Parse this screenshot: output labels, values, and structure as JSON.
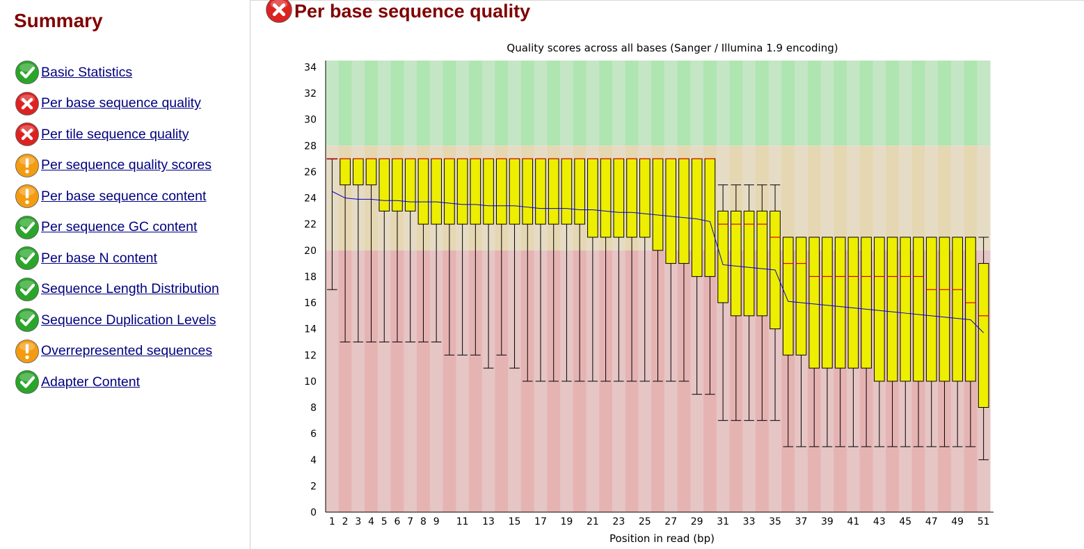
{
  "sidebar": {
    "title": "Summary",
    "modules": [
      {
        "label": "Basic Statistics",
        "status": "pass",
        "icon": "pass-icon"
      },
      {
        "label": "Per base sequence quality",
        "status": "fail",
        "icon": "fail-icon"
      },
      {
        "label": "Per tile sequence quality",
        "status": "fail",
        "icon": "fail-icon"
      },
      {
        "label": "Per sequence quality scores",
        "status": "warn",
        "icon": "warn-icon"
      },
      {
        "label": "Per base sequence content",
        "status": "warn",
        "icon": "warn-icon"
      },
      {
        "label": "Per sequence GC content",
        "status": "pass",
        "icon": "pass-icon"
      },
      {
        "label": "Per base N content",
        "status": "pass",
        "icon": "pass-icon"
      },
      {
        "label": "Sequence Length Distribution",
        "status": "pass",
        "icon": "pass-icon"
      },
      {
        "label": "Sequence Duplication Levels",
        "status": "pass",
        "icon": "pass-icon"
      },
      {
        "label": "Overrepresented sequences",
        "status": "warn",
        "icon": "warn-icon"
      },
      {
        "label": "Adapter Content",
        "status": "pass",
        "icon": "pass-icon"
      }
    ]
  },
  "module": {
    "title": "Per base sequence quality",
    "status": "fail",
    "icon": "fail-icon"
  },
  "colors": {
    "title": "#800000",
    "link": "#000080",
    "good_zone": [
      "#c4e6c5",
      "#afe5b0"
    ],
    "ok_zone": [
      "#e6dcc5",
      "#e6d7b3"
    ],
    "bad_zone": [
      "#e6c5c5",
      "#e6b3b3"
    ],
    "box_fill": "#eeee00",
    "median": "#dd0000",
    "mean_line": "#0000cc",
    "pass": "#2aa52a",
    "fail": "#dd2222",
    "warn": "#f39c12"
  },
  "chart_data": {
    "type": "box",
    "title": "Quality scores across all bases (Sanger / Illumina 1.9 encoding)",
    "xlabel": "Position in read (bp)",
    "ylabel": "",
    "ylim": [
      0,
      34.5
    ],
    "yticks": [
      0,
      2,
      4,
      6,
      8,
      10,
      12,
      14,
      16,
      18,
      20,
      22,
      24,
      26,
      28,
      30,
      32,
      34
    ],
    "zones": {
      "good": [
        28,
        34.5
      ],
      "ok": [
        20,
        28
      ],
      "bad": [
        0,
        20
      ]
    },
    "positions": [
      1,
      2,
      3,
      4,
      5,
      6,
      7,
      8,
      9,
      10,
      11,
      12,
      13,
      14,
      15,
      16,
      17,
      18,
      19,
      20,
      21,
      22,
      23,
      24,
      25,
      26,
      27,
      28,
      29,
      30,
      31,
      32,
      33,
      34,
      35,
      36,
      37,
      38,
      39,
      40,
      41,
      42,
      43,
      44,
      45,
      46,
      47,
      48,
      49,
      50,
      51
    ],
    "xtick_labels": [
      "1",
      "2",
      "3",
      "4",
      "5",
      "6",
      "7",
      "8",
      "9",
      "11",
      "13",
      "15",
      "17",
      "19",
      "21",
      "23",
      "25",
      "27",
      "29",
      "31",
      "33",
      "35",
      "37",
      "39",
      "41",
      "43",
      "45",
      "47",
      "49",
      "51"
    ],
    "xtick_positions": [
      1,
      2,
      3,
      4,
      5,
      6,
      7,
      8,
      9,
      11,
      13,
      15,
      17,
      19,
      21,
      23,
      25,
      27,
      29,
      31,
      33,
      35,
      37,
      39,
      41,
      43,
      45,
      47,
      49,
      51
    ],
    "median": [
      27,
      27,
      27,
      27,
      27,
      27,
      27,
      27,
      27,
      27,
      27,
      27,
      27,
      27,
      27,
      27,
      27,
      27,
      27,
      27,
      27,
      27,
      27,
      27,
      27,
      27,
      27,
      27,
      27,
      27,
      22,
      22,
      22,
      22,
      21,
      19,
      19,
      18,
      18,
      18,
      18,
      18,
      18,
      18,
      18,
      18,
      17,
      17,
      17,
      16,
      15
    ],
    "q1": [
      27,
      25,
      25,
      25,
      23,
      23,
      23,
      22,
      22,
      22,
      22,
      22,
      22,
      22,
      22,
      22,
      22,
      22,
      22,
      22,
      21,
      21,
      21,
      21,
      21,
      20,
      19,
      19,
      18,
      18,
      16,
      15,
      15,
      15,
      14,
      12,
      12,
      11,
      11,
      11,
      11,
      11,
      10,
      10,
      10,
      10,
      10,
      10,
      10,
      10,
      8
    ],
    "q3": [
      27,
      27,
      27,
      27,
      27,
      27,
      27,
      27,
      27,
      27,
      27,
      27,
      27,
      27,
      27,
      27,
      27,
      27,
      27,
      27,
      27,
      27,
      27,
      27,
      27,
      27,
      27,
      27,
      27,
      27,
      23,
      23,
      23,
      23,
      23,
      21,
      21,
      21,
      21,
      21,
      21,
      21,
      21,
      21,
      21,
      21,
      21,
      21,
      21,
      21,
      19
    ],
    "whisker_low": [
      17,
      13,
      13,
      13,
      13,
      13,
      13,
      13,
      13,
      12,
      12,
      12,
      11,
      12,
      11,
      10,
      10,
      10,
      10,
      10,
      10,
      10,
      10,
      10,
      10,
      10,
      10,
      10,
      9,
      9,
      7,
      7,
      7,
      7,
      7,
      5,
      5,
      5,
      5,
      5,
      5,
      5,
      5,
      5,
      5,
      5,
      5,
      5,
      5,
      5,
      4
    ],
    "whisker_high": [
      27,
      27,
      27,
      27,
      27,
      27,
      27,
      27,
      27,
      27,
      27,
      27,
      27,
      27,
      27,
      27,
      27,
      27,
      27,
      27,
      27,
      27,
      27,
      27,
      27,
      27,
      27,
      27,
      27,
      27,
      25,
      25,
      25,
      25,
      25,
      21,
      21,
      21,
      21,
      21,
      21,
      21,
      21,
      21,
      21,
      21,
      21,
      21,
      21,
      21,
      21
    ],
    "mean": [
      24.5,
      24.0,
      23.9,
      23.9,
      23.8,
      23.8,
      23.7,
      23.7,
      23.7,
      23.6,
      23.5,
      23.5,
      23.4,
      23.4,
      23.4,
      23.3,
      23.2,
      23.2,
      23.2,
      23.1,
      23.1,
      23.0,
      22.9,
      22.9,
      22.8,
      22.7,
      22.6,
      22.5,
      22.4,
      22.2,
      18.9,
      18.8,
      18.7,
      18.6,
      18.5,
      16.1,
      16.0,
      15.9,
      15.8,
      15.7,
      15.6,
      15.5,
      15.4,
      15.3,
      15.2,
      15.1,
      15.0,
      14.9,
      14.8,
      14.7,
      13.7
    ]
  }
}
